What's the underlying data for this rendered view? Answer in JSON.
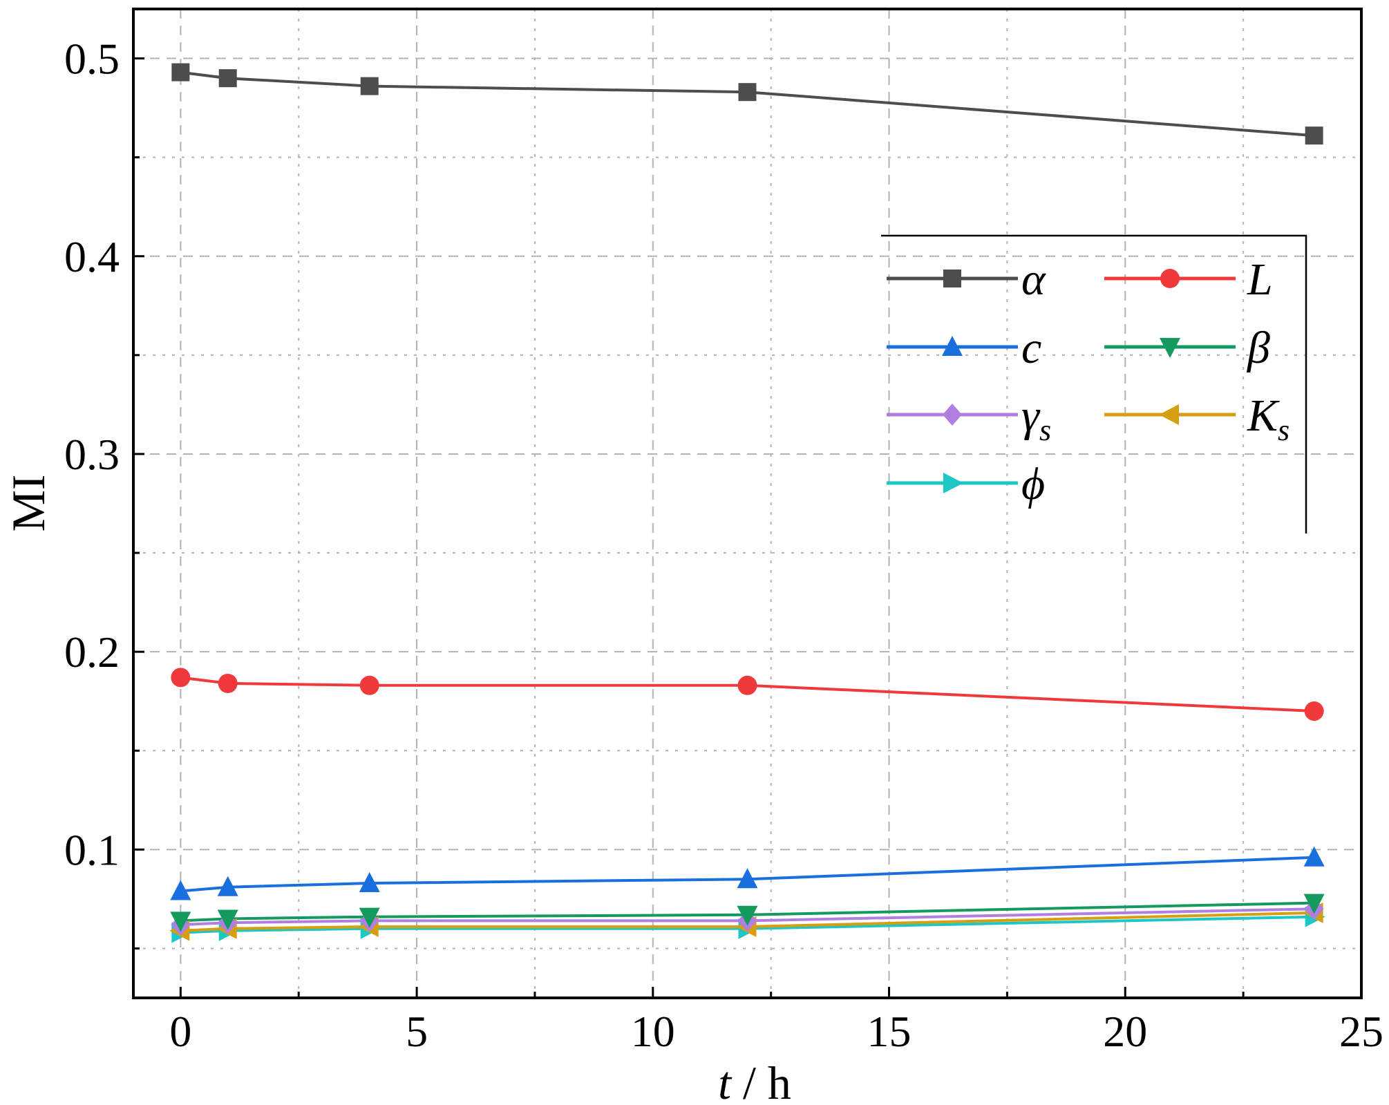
{
  "chart_data": {
    "type": "line",
    "xlabel": "t / h",
    "xlabel_italic_part": "t",
    "xlabel_rest": " / h",
    "ylabel": "MI",
    "xlim": [
      -1,
      25
    ],
    "ylim": [
      0.025,
      0.525
    ],
    "xticks": [
      0,
      5,
      10,
      15,
      20,
      25
    ],
    "xtick_labels": [
      "0",
      "5",
      "10",
      "15",
      "20",
      "25"
    ],
    "yticks": [
      0.1,
      0.2,
      0.3,
      0.4,
      0.5
    ],
    "ytick_labels": [
      "0.1",
      "0.2",
      "0.3",
      "0.4",
      "0.5"
    ],
    "grid": true,
    "legend_position": "top-right",
    "x": [
      0,
      1,
      4,
      12,
      24
    ],
    "series": [
      {
        "name": "α",
        "base": "α",
        "sub": "",
        "color": "#4d4d4d",
        "marker": "square",
        "values": [
          0.493,
          0.49,
          0.486,
          0.483,
          0.461
        ]
      },
      {
        "name": "L",
        "base": "L",
        "sub": "",
        "color": "#f0393b",
        "marker": "circle",
        "values": [
          0.187,
          0.184,
          0.183,
          0.183,
          0.17
        ]
      },
      {
        "name": "c",
        "base": "c",
        "sub": "",
        "color": "#1a6fdf",
        "marker": "triangle-up",
        "values": [
          0.079,
          0.081,
          0.083,
          0.085,
          0.096
        ]
      },
      {
        "name": "β",
        "base": "β",
        "sub": "",
        "color": "#149a5e",
        "marker": "triangle-down",
        "values": [
          0.064,
          0.065,
          0.066,
          0.067,
          0.073
        ]
      },
      {
        "name": "γs",
        "base": "γ",
        "sub": "s",
        "color": "#b07fe0",
        "marker": "diamond",
        "values": [
          0.062,
          0.063,
          0.064,
          0.064,
          0.07
        ]
      },
      {
        "name": "Ks",
        "base": "K",
        "sub": "s",
        "color": "#d69f12",
        "marker": "triangle-left",
        "values": [
          0.059,
          0.06,
          0.061,
          0.061,
          0.068
        ]
      },
      {
        "name": "ϕ",
        "base": "ϕ",
        "sub": "",
        "color": "#1ec6c6",
        "marker": "triangle-right",
        "values": [
          0.058,
          0.059,
          0.06,
          0.06,
          0.066
        ]
      }
    ],
    "grid_color": "#b3b3b3"
  }
}
